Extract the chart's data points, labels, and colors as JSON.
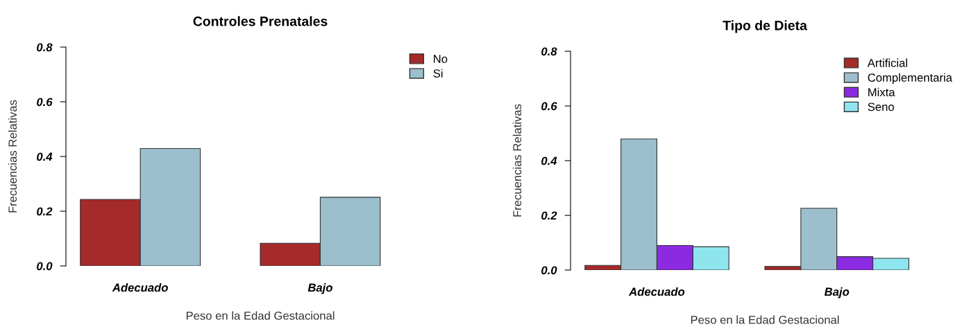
{
  "chart_data": [
    {
      "type": "bar",
      "title": "Controles Prenatales",
      "xlabel": "Peso en la Edad Gestacional",
      "ylabel": "Frecuencias Relativas",
      "categories": [
        "Adecuado",
        "Bajo"
      ],
      "series": [
        {
          "name": "No",
          "color": "#a52a2a",
          "values": [
            0.243,
            0.083
          ]
        },
        {
          "name": "Si",
          "color": "#9bbfcd",
          "values": [
            0.429,
            0.251
          ]
        }
      ],
      "ylim": [
        0,
        0.8
      ],
      "yticks": [
        {
          "value": 0,
          "label": "0.0"
        },
        0.2,
        0.4,
        0.6,
        0.8
      ],
      "grid": false,
      "legend": "top right"
    },
    {
      "type": "bar",
      "title": "Tipo de Dieta",
      "xlabel": "Peso en la Edad Gestacional",
      "ylabel": "Frecuencias Relativas",
      "categories": [
        "Adecuado",
        "Bajo"
      ],
      "series": [
        {
          "name": "Artificial",
          "color": "#a52a2a",
          "values": [
            0.017,
            0.013
          ]
        },
        {
          "name": "Complementaria",
          "color": "#9bbfcd",
          "values": [
            0.479,
            0.226
          ]
        },
        {
          "name": "Mixta",
          "color": "#8a2be2",
          "values": [
            0.09,
            0.049
          ]
        },
        {
          "name": "Seno",
          "color": "#8ee5ee",
          "values": [
            0.085,
            0.043
          ]
        }
      ],
      "ylim": [
        0,
        0.8
      ],
      "yticks": [
        {
          "value": 0,
          "label": "0.0"
        },
        0.2,
        0.4,
        0.6,
        0.8
      ],
      "grid": false,
      "legend": "top right"
    }
  ]
}
